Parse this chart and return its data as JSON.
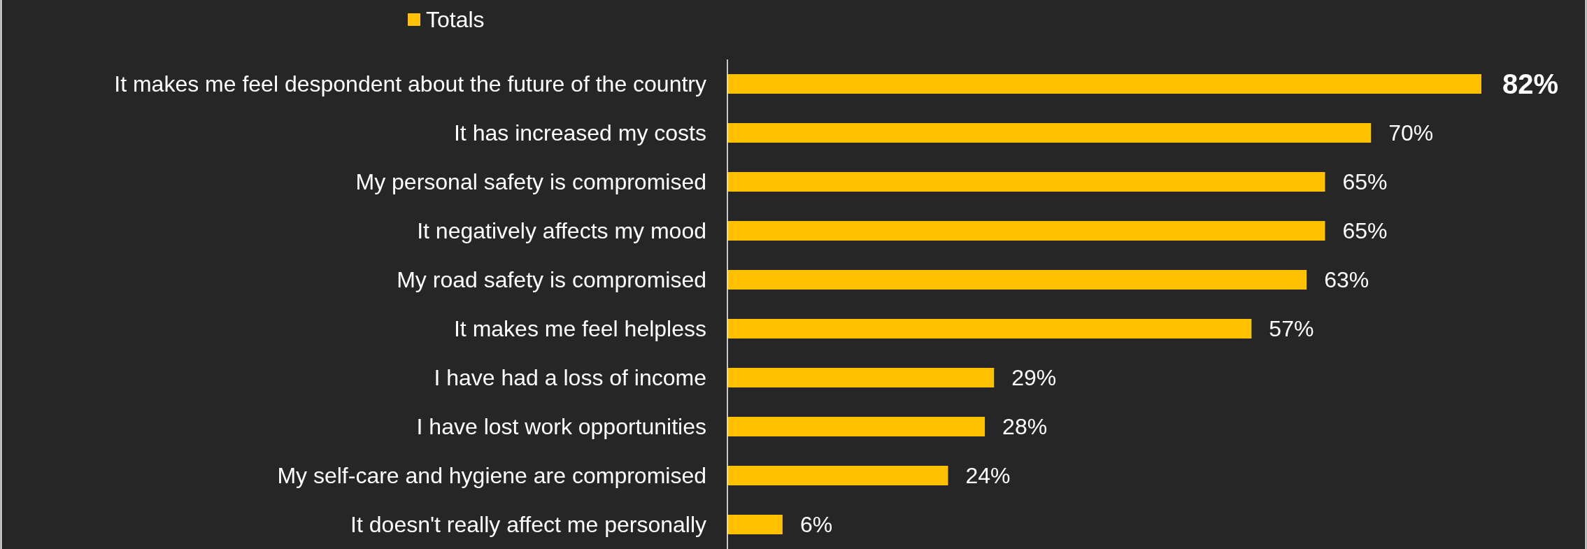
{
  "chart_data": {
    "type": "bar",
    "orientation": "horizontal",
    "categories": [
      "It makes me feel despondent about the future of the country",
      "It has increased my costs",
      "My personal safety is compromised",
      "It negatively affects my mood",
      "My road safety is compromised",
      "It makes me feel helpless",
      "I have had a loss of income",
      "I have lost work opportunities",
      "My self-care and hygiene are compromised",
      "It doesn't really affect me personally"
    ],
    "series": [
      {
        "name": "Totals",
        "color": "#ffc000",
        "values": [
          82,
          70,
          65,
          65,
          63,
          57,
          29,
          28,
          24,
          6
        ],
        "value_labels": [
          "82%",
          "70%",
          "65%",
          "65%",
          "63%",
          "57%",
          "29%",
          "28%",
          "24%",
          "6%"
        ]
      }
    ],
    "legend": "top"
  }
}
